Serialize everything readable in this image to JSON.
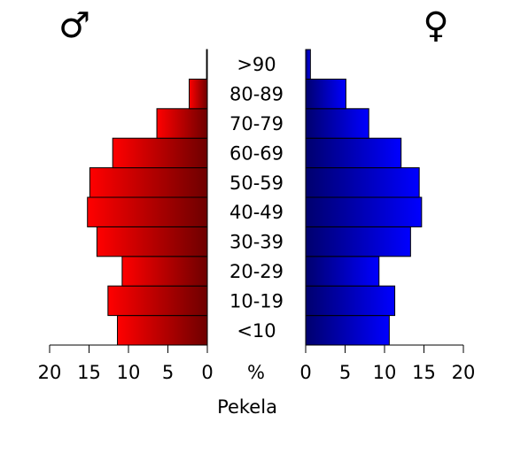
{
  "chart_data": {
    "type": "bar",
    "subtype": "population-pyramid",
    "title": "",
    "caption": "Pekela",
    "center_unit_label": "%",
    "male_symbol": "♂",
    "female_symbol": "♀",
    "categories": [
      "<10",
      "10-19",
      "20-29",
      "30-39",
      "40-49",
      "50-59",
      "60-69",
      "70-79",
      "80-89",
      ">90"
    ],
    "series": [
      {
        "name": "♂",
        "values": [
          11.4,
          12.6,
          10.8,
          14.0,
          15.2,
          14.9,
          12.0,
          6.4,
          2.3,
          0.1
        ],
        "color_light": "#ff0000",
        "color_dark": "#6e0000"
      },
      {
        "name": "♀",
        "values": [
          10.6,
          11.3,
          9.3,
          13.3,
          14.7,
          14.4,
          12.1,
          8.0,
          5.1,
          0.6
        ],
        "color_light": "#0000ff",
        "color_dark": "#00006e"
      }
    ],
    "xlim": [
      0,
      20
    ],
    "ticks": [
      0,
      5,
      10,
      15,
      20
    ],
    "tick_labels": [
      "0",
      "5",
      "10",
      "15",
      "20"
    ],
    "grid": false,
    "legend": "none"
  }
}
